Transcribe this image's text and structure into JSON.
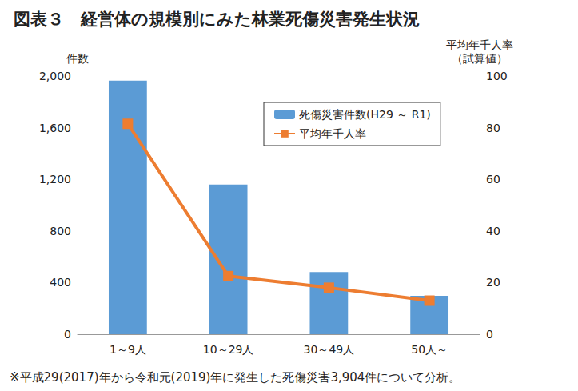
{
  "chart_data": {
    "type": "bar",
    "title": "図表３　経営体の規模別にみた林業死傷災害発生状況",
    "categories": [
      "1～9人",
      "10～29人",
      "30～49人",
      "50人～"
    ],
    "series": [
      {
        "name": "死傷災害件数(H29 ～ R1)",
        "type": "bar",
        "color": "#5b9bd5",
        "values": [
          1965,
          1160,
          482,
          297
        ]
      },
      {
        "name": "平均年千人率",
        "type": "line",
        "axis": "y2",
        "color": "#ed7d31",
        "marker": "square",
        "values": [
          81.5,
          22.5,
          18,
          13
        ]
      }
    ],
    "y_label": "件数",
    "y2_label": "平均年千人率\n（試算値）",
    "ylim": [
      0,
      2000
    ],
    "yticks": [
      0,
      400,
      800,
      {
        "value": 1200,
        "label": "1,200"
      },
      {
        "value": 1600,
        "label": "1,600"
      },
      {
        "value": 2000,
        "label": "2,000"
      }
    ],
    "y2lim": [
      0,
      100
    ],
    "y2ticks": [
      0,
      20,
      40,
      60,
      80,
      100
    ],
    "legend": "upper right",
    "grid": false,
    "annotations": [
      "※平成29(2017)年から令和元(2019)年に発生した死傷災害3,904件について分析。"
    ]
  }
}
